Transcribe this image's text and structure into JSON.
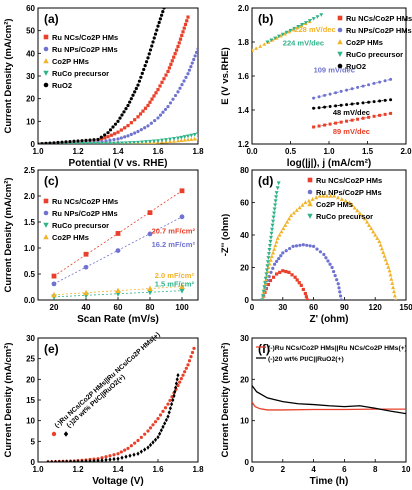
{
  "colors": {
    "ru_ncs": "#e8402a",
    "ru_nps": "#6f73cf",
    "co2p": "#f2b328",
    "ruco": "#2fb38a",
    "ruo2": "#000000",
    "pair_ru": "#e8402a",
    "pair_ref": "#000000"
  },
  "chart_data": [
    {
      "panel": "(a)",
      "type": "line",
      "xlabel": "Potential (V vs. RHE)",
      "ylabel": "Current Density (mA/cm²)",
      "xlim": [
        1.0,
        1.8
      ],
      "ylim": [
        0,
        60
      ],
      "xticks": [
        "1.0",
        "1.2",
        "1.4",
        "1.6",
        "1.8"
      ],
      "yticks": [
        "0",
        "10",
        "20",
        "30",
        "40",
        "50",
        "60"
      ],
      "legend_position": "top-left",
      "series": [
        {
          "name": "Ru NCs/Co2P HMs",
          "marker": "square",
          "color_key": "ru_ncs",
          "x": [
            1.0,
            1.2,
            1.3,
            1.35,
            1.4,
            1.45,
            1.5,
            1.55,
            1.6,
            1.65,
            1.7,
            1.75
          ],
          "y": [
            0.0,
            0.6,
            1.8,
            3.2,
            5.2,
            8.1,
            12.0,
            17.0,
            24.0,
            32.0,
            43.0,
            56.0
          ]
        },
        {
          "name": "Ru NPs/Co2P HMs",
          "marker": "circle",
          "color_key": "ru_nps",
          "x": [
            1.0,
            1.3,
            1.4,
            1.45,
            1.5,
            1.55,
            1.6,
            1.65,
            1.7,
            1.75,
            1.8
          ],
          "y": [
            0.0,
            0.8,
            2.2,
            3.6,
            5.5,
            8.0,
            11.5,
            16.5,
            23.0,
            31.0,
            42.0
          ]
        },
        {
          "name": "Co2P HMs",
          "marker": "triangle-up",
          "color_key": "co2p",
          "x": [
            1.0,
            1.4,
            1.5,
            1.6,
            1.7,
            1.75,
            1.8
          ],
          "y": [
            0.0,
            0.2,
            0.4,
            0.8,
            1.4,
            1.9,
            2.4
          ]
        },
        {
          "name": "RuCo precursor",
          "marker": "triangle-down",
          "color_key": "ruco",
          "x": [
            1.0,
            1.4,
            1.5,
            1.6,
            1.7,
            1.75,
            1.8
          ],
          "y": [
            0.0,
            0.3,
            0.7,
            1.4,
            2.6,
            3.5,
            4.5
          ]
        },
        {
          "name": "RuO2",
          "marker": "circle",
          "color_key": "ruo2",
          "x": [
            1.0,
            1.3,
            1.35,
            1.4,
            1.45,
            1.5,
            1.55,
            1.6,
            1.63
          ],
          "y": [
            0.0,
            2.0,
            5.0,
            10.0,
            17.0,
            26.0,
            38.0,
            52.0,
            60.0
          ]
        }
      ]
    },
    {
      "panel": "(b)",
      "type": "line",
      "xlabel": "log(|j|), j (mA/cm²)",
      "ylabel": "E (V vs.RHE)",
      "xlim": [
        0.0,
        2.0
      ],
      "ylim": [
        1.2,
        2.0
      ],
      "xticks": [
        "0.0",
        "0.5",
        "1.0",
        "1.5",
        "2.0"
      ],
      "yticks": [
        "1.2",
        "1.4",
        "1.6",
        "1.8",
        "2.0"
      ],
      "legend_position": "top-right",
      "series": [
        {
          "name": "Ru NCs/Co2P HMs",
          "marker": "square",
          "color_key": "ru_ncs",
          "x": [
            0.8,
            1.8
          ],
          "y": [
            1.3,
            1.38
          ]
        },
        {
          "name": "Ru NPs/Co2P HMs",
          "marker": "circle",
          "color_key": "ru_nps",
          "x": [
            0.8,
            1.8
          ],
          "y": [
            1.47,
            1.58
          ]
        },
        {
          "name": "Co2P HMs",
          "marker": "triangle-up",
          "color_key": "co2p",
          "x": [
            0.0,
            0.75
          ],
          "y": [
            1.75,
            1.92
          ]
        },
        {
          "name": "RuCo precursor",
          "marker": "triangle-down",
          "color_key": "ruco",
          "x": [
            0.2,
            0.9
          ],
          "y": [
            1.8,
            1.96
          ]
        },
        {
          "name": "RuO2",
          "marker": "circle",
          "color_key": "ruo2",
          "x": [
            0.8,
            1.8
          ],
          "y": [
            1.41,
            1.46
          ]
        }
      ],
      "annotations": [
        {
          "text": "228 mV/dec",
          "color_key": "co2p",
          "x": 0.55,
          "y": 1.86
        },
        {
          "text": "224 mV/dec",
          "color_key": "ruco",
          "x": 0.4,
          "y": 1.78
        },
        {
          "text": "109 mV/dec",
          "color_key": "ru_nps",
          "x": 0.8,
          "y": 1.62
        },
        {
          "text": "48 mV/dec",
          "color_key": "ruo2",
          "x": 1.05,
          "y": 1.37
        },
        {
          "text": "89 mV/dec",
          "color_key": "ru_ncs",
          "x": 1.05,
          "y": 1.26
        }
      ]
    },
    {
      "panel": "(c)",
      "type": "scatter",
      "xlabel": "Scan Rate (mV/s)",
      "ylabel": "Current Density (mA/cm²)",
      "xlim": [
        10,
        110
      ],
      "ylim": [
        0.0,
        2.5
      ],
      "xticks": [
        "20",
        "40",
        "60",
        "80",
        "100"
      ],
      "yticks": [
        "0.0",
        "0.5",
        "1.0",
        "1.5",
        "2.0",
        "2.5"
      ],
      "legend_position": "top-left",
      "series": [
        {
          "name": "Ru NCs/Co2P HMs",
          "marker": "square",
          "color_key": "ru_ncs",
          "x": [
            20,
            40,
            60,
            80,
            100
          ],
          "y": [
            0.46,
            0.88,
            1.28,
            1.68,
            2.1
          ]
        },
        {
          "name": "Ru NPs/Co2P HMs",
          "marker": "circle",
          "color_key": "ru_nps",
          "x": [
            20,
            40,
            60,
            80,
            100
          ],
          "y": [
            0.31,
            0.63,
            0.95,
            1.27,
            1.6
          ]
        },
        {
          "name": "RuCo precursor",
          "marker": "triangle-down",
          "color_key": "ruco",
          "x": [
            20,
            40,
            60,
            80,
            100
          ],
          "y": [
            0.06,
            0.09,
            0.12,
            0.15,
            0.18
          ]
        },
        {
          "name": "Co2P HMs",
          "marker": "triangle-up",
          "color_key": "co2p",
          "x": [
            20,
            40,
            60,
            80,
            100
          ],
          "y": [
            0.1,
            0.14,
            0.18,
            0.22,
            0.26
          ]
        }
      ],
      "annotations": [
        {
          "text": "20.7 mF/cm²",
          "color_key": "ru_ncs",
          "x": 81,
          "y": 1.28
        },
        {
          "text": "16.2 mF/cm²",
          "color_key": "ru_nps",
          "x": 81,
          "y": 1.02
        },
        {
          "text": "2.0 mF/cm²",
          "color_key": "co2p",
          "x": 83,
          "y": 0.42
        },
        {
          "text": "1.5 mF/cm²",
          "color_key": "ruco",
          "x": 83,
          "y": 0.26
        }
      ]
    },
    {
      "panel": "(d)",
      "type": "scatter",
      "xlabel": "Z' (ohm)",
      "ylabel": "-Z'' (ohm)",
      "xlim": [
        0,
        150
      ],
      "ylim": [
        0,
        80
      ],
      "xticks": [
        "0",
        "30",
        "60",
        "90",
        "120",
        "150"
      ],
      "yticks": [
        "0",
        "20",
        "40",
        "60",
        "80"
      ],
      "legend_position": "top-right",
      "series": [
        {
          "name": "Ru NCs/Co2P HMs",
          "marker": "square",
          "color_key": "ru_ncs",
          "x": [
            10,
            14,
            18,
            24,
            30,
            36,
            42,
            48,
            52,
            54
          ],
          "y": [
            0,
            7,
            12,
            16,
            18,
            17,
            14,
            9,
            4,
            0
          ]
        },
        {
          "name": "Ru NPs/Co2P HMs",
          "marker": "circle",
          "color_key": "ru_nps",
          "x": [
            10,
            15,
            22,
            30,
            40,
            50,
            60,
            70,
            78,
            84,
            87
          ],
          "y": [
            0,
            12,
            22,
            29,
            33,
            34,
            33,
            28,
            20,
            10,
            0
          ]
        },
        {
          "name": "Co2P HMs",
          "marker": "triangle-up",
          "color_key": "co2p",
          "x": [
            10,
            16,
            25,
            38,
            52,
            66,
            80,
            95,
            110,
            124,
            134,
            140
          ],
          "y": [
            0,
            20,
            38,
            52,
            60,
            64,
            64,
            60,
            50,
            36,
            18,
            0
          ]
        },
        {
          "name": "RuCo precursor",
          "marker": "triangle-down",
          "color_key": "ruco",
          "x": [
            10,
            12,
            14,
            16,
            18,
            20,
            22,
            24,
            26
          ],
          "y": [
            0,
            8,
            16,
            26,
            36,
            46,
            56,
            66,
            72
          ]
        }
      ]
    },
    {
      "panel": "(e)",
      "type": "scatter",
      "xlabel": "Voltage (V)",
      "ylabel": "Current Density (mA/cm²)",
      "xlim": [
        1.0,
        1.8
      ],
      "ylim": [
        0,
        30
      ],
      "xticks": [
        "1.0",
        "1.2",
        "1.4",
        "1.6",
        "1.8"
      ],
      "yticks": [
        "0",
        "5",
        "10",
        "15",
        "20",
        "25",
        "30"
      ],
      "legend_position": "left, rotated",
      "series": [
        {
          "name": "(-)Ru NCs/Co2P HMs||Ru NCs/Co2P HMs(+)",
          "marker": "circle",
          "color_key": "pair_ru",
          "x": [
            1.05,
            1.2,
            1.3,
            1.4,
            1.45,
            1.5,
            1.55,
            1.6,
            1.65,
            1.7,
            1.75,
            1.78
          ],
          "y": [
            0.0,
            0.3,
            0.8,
            2.0,
            3.3,
            5.2,
            7.5,
            10.5,
            14.0,
            18.5,
            23.5,
            27.5
          ]
        },
        {
          "name": "(-)20 wt% Pt/C||RuO2(+)",
          "marker": "diamond",
          "color_key": "pair_ref",
          "x": [
            1.05,
            1.2,
            1.3,
            1.4,
            1.5,
            1.55,
            1.6,
            1.65,
            1.68,
            1.7
          ],
          "y": [
            0.0,
            0.1,
            0.3,
            0.8,
            2.0,
            3.5,
            6.0,
            11.0,
            16.0,
            21.0
          ]
        }
      ]
    },
    {
      "panel": "(f)",
      "type": "line",
      "xlabel": "Time (h)",
      "ylabel": "Current Dencity (mA/cm²)",
      "xlim": [
        0,
        10
      ],
      "ylim": [
        0,
        30
      ],
      "xticks": [
        "0",
        "2",
        "4",
        "6",
        "8",
        "10"
      ],
      "yticks": [
        "0",
        "10",
        "20",
        "30"
      ],
      "legend_position": "top",
      "series": [
        {
          "name": "(-)Ru NCs/Co2P HMs||Ru NCs/Co2P HMs(+)",
          "color_key": "pair_ru",
          "x": [
            0,
            0.2,
            0.5,
            1,
            2,
            4,
            6,
            8,
            10
          ],
          "y": [
            14.5,
            13.4,
            12.9,
            12.6,
            12.6,
            12.7,
            12.7,
            12.8,
            12.8
          ]
        },
        {
          "name": "(-)20 wt% Pt/C||RuO2(+)",
          "color_key": "pair_ref",
          "x": [
            0,
            0.3,
            1,
            2,
            3,
            4,
            5,
            6,
            7,
            8,
            9,
            10
          ],
          "y": [
            18.5,
            17.0,
            15.5,
            14.6,
            14.1,
            13.9,
            13.6,
            13.4,
            13.6,
            13.0,
            12.3,
            11.7
          ]
        }
      ]
    }
  ]
}
